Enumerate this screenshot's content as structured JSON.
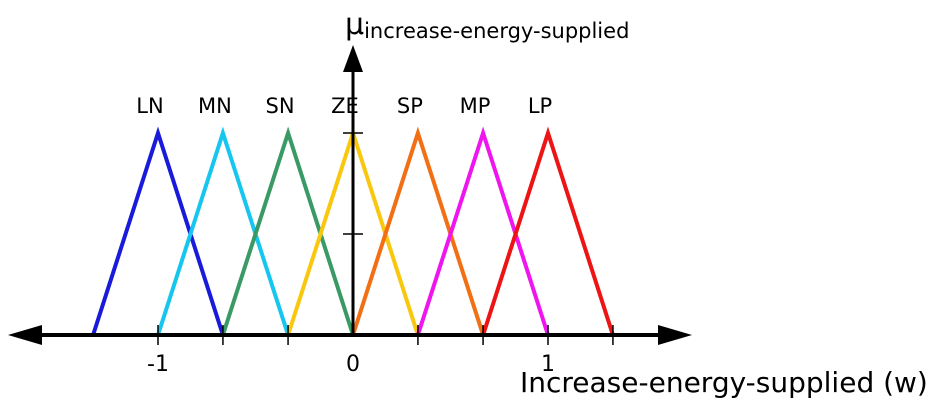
{
  "chart_data": {
    "type": "line",
    "title": "",
    "xlabel": "Increase-energy-supplied (w)",
    "ylabel": {
      "symbol": "μ",
      "subscript": "increase-energy-supplied"
    },
    "xlim": [
      -1.7,
      1.7
    ],
    "ylim": [
      0,
      1
    ],
    "xticks": [
      -1,
      -0.667,
      -0.333,
      0,
      0.333,
      0.667,
      1,
      1.333
    ],
    "xtick_labels": [
      {
        "x": -1,
        "label": "-1"
      },
      {
        "x": 0,
        "label": "0"
      },
      {
        "x": 1,
        "label": "1"
      }
    ],
    "yticks": [
      0.5,
      1
    ],
    "series": [
      {
        "name": "LN",
        "color": "#1a1adb",
        "x": [
          -1.333,
          -1,
          -0.667
        ],
        "y": [
          0,
          1,
          0
        ]
      },
      {
        "name": "MN",
        "color": "#17c6ef",
        "x": [
          -1,
          -0.667,
          -0.333
        ],
        "y": [
          0,
          1,
          0
        ]
      },
      {
        "name": "SN",
        "color": "#3a9a66",
        "x": [
          -0.667,
          -0.333,
          0
        ],
        "y": [
          0,
          1,
          0
        ]
      },
      {
        "name": "ZE",
        "color": "#f9c80e",
        "x": [
          -0.333,
          0,
          0.333
        ],
        "y": [
          0,
          1,
          0
        ]
      },
      {
        "name": "SP",
        "color": "#f26f14",
        "x": [
          0,
          0.333,
          0.667
        ],
        "y": [
          0,
          1,
          0
        ]
      },
      {
        "name": "MP",
        "color": "#ef15ef",
        "x": [
          0.333,
          0.667,
          1
        ],
        "y": [
          0,
          1,
          0
        ]
      },
      {
        "name": "LP",
        "color": "#ec1414",
        "x": [
          0.667,
          1,
          1.333
        ],
        "y": [
          0,
          1,
          0
        ]
      }
    ],
    "grid": false,
    "legend": "labels above peaks"
  }
}
